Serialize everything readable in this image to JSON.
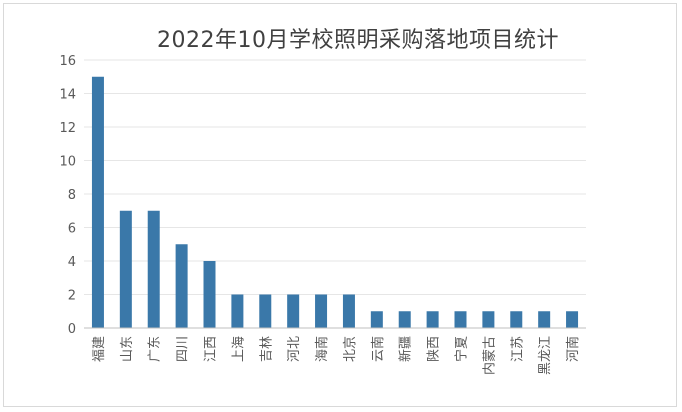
{
  "chart_data": {
    "type": "bar",
    "title": "2022年10月学校照明采购落地项目统计",
    "xlabel": "",
    "ylabel": "",
    "categories": [
      "福建",
      "山东",
      "广东",
      "四川",
      "江西",
      "上海",
      "吉林",
      "河北",
      "海南",
      "北京",
      "云南",
      "新疆",
      "陕西",
      "宁夏",
      "内蒙古",
      "江苏",
      "黑龙江",
      "河南"
    ],
    "values": [
      15,
      7,
      7,
      5,
      4,
      2,
      2,
      2,
      2,
      2,
      1,
      1,
      1,
      1,
      1,
      1,
      1,
      1
    ],
    "ylim": [
      0,
      16
    ],
    "yticks": [
      0,
      2,
      4,
      6,
      8,
      10,
      12,
      14,
      16
    ],
    "grid": true,
    "legend": "none",
    "colors": {
      "bar": "#3a78a9",
      "grid": "#e6e6e6",
      "axis": "#bfbfbf",
      "text": "#595959"
    }
  }
}
